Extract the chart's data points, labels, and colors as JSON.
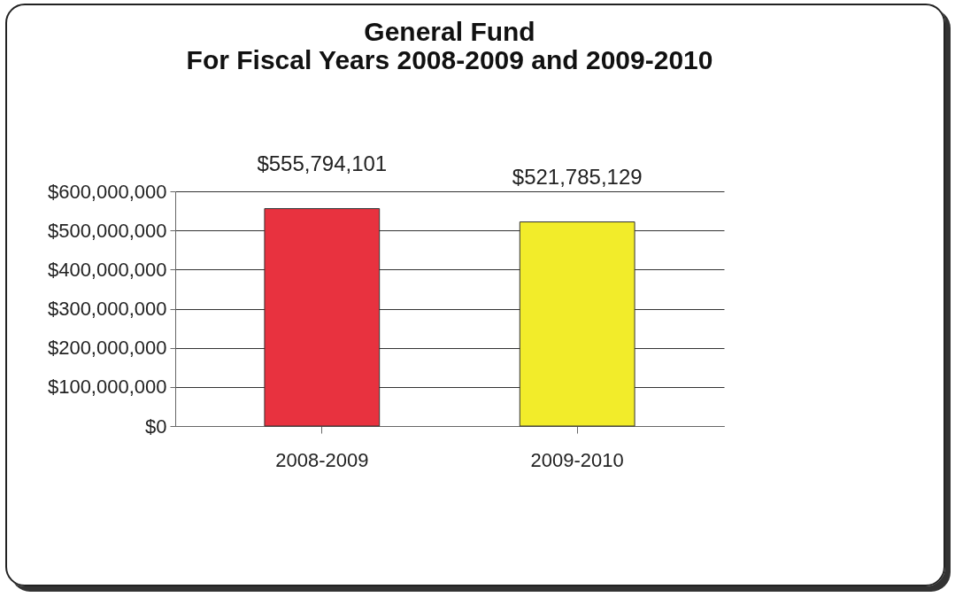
{
  "chart_data": {
    "type": "bar",
    "title": [
      "General Fund",
      "For Fiscal Years 2008-2009 and 2009-2010"
    ],
    "categories": [
      "2008-2009",
      "2009-2010"
    ],
    "values": [
      555794101,
      521785129
    ],
    "colors": [
      "#e8323f",
      "#f2ec2a"
    ],
    "value_labels": [
      "$555,794,101",
      "$521,785,129"
    ],
    "ylim": [
      0,
      600000000
    ],
    "yticks": [
      {
        "value": 0,
        "label": "$0"
      },
      {
        "value": 100000000,
        "label": "$100,000,000"
      },
      {
        "value": 200000000,
        "label": "$200,000,000"
      },
      {
        "value": 300000000,
        "label": "$300,000,000"
      },
      {
        "value": 400000000,
        "label": "$400,000,000"
      },
      {
        "value": 500000000,
        "label": "$500,000,000"
      },
      {
        "value": 600000000,
        "label": "$600,000,000"
      }
    ],
    "grid": true
  }
}
